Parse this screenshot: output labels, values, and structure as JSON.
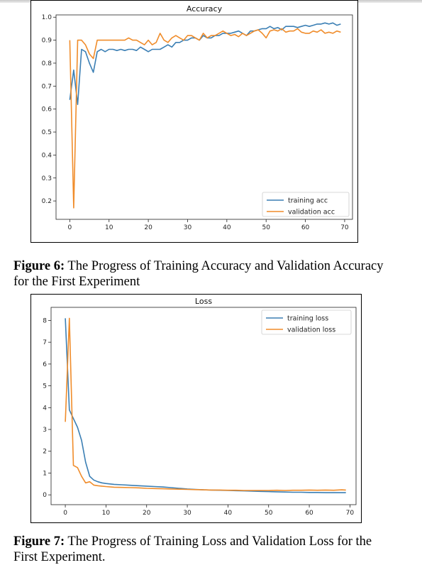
{
  "figures": [
    {
      "caption_label": "Figure 6:",
      "caption_text": " The Progress of Training Accuracy and Validation Accuracy for the First Experiment"
    },
    {
      "caption_label": "Figure 7:",
      "caption_text": " The Progress of Training Loss and Validation Loss for the First Experiment."
    }
  ],
  "colors": {
    "training": "#3b7fb4",
    "validation": "#f08c2a"
  },
  "chart_data": [
    {
      "type": "line",
      "title": "Accuracy",
      "xlabel": "",
      "ylabel": "",
      "xlim": [
        -3.5,
        72
      ],
      "ylim": [
        0.12,
        1.01
      ],
      "x_ticks": [
        "0",
        "10",
        "20",
        "30",
        "40",
        "50",
        "60",
        "70"
      ],
      "y_ticks": [
        "0.2",
        "0.3",
        "0.4",
        "0.5",
        "0.6",
        "0.7",
        "0.8",
        "0.9",
        "1.0"
      ],
      "legend_position": "lower-right",
      "grid": false,
      "series": [
        {
          "name": "training acc",
          "color_key": "training",
          "x": [
            0,
            1,
            2,
            3,
            4,
            5,
            6,
            7,
            8,
            9,
            10,
            11,
            12,
            13,
            14,
            15,
            16,
            17,
            18,
            19,
            20,
            21,
            22,
            23,
            24,
            25,
            26,
            27,
            28,
            29,
            30,
            31,
            32,
            33,
            34,
            35,
            36,
            37,
            38,
            39,
            40,
            41,
            42,
            43,
            44,
            45,
            46,
            47,
            48,
            49,
            50,
            51,
            52,
            53,
            54,
            55,
            56,
            57,
            58,
            59,
            60,
            61,
            62,
            63,
            64,
            65,
            66,
            67,
            68,
            69
          ],
          "values": [
            0.64,
            0.77,
            0.62,
            0.86,
            0.85,
            0.8,
            0.76,
            0.85,
            0.86,
            0.85,
            0.86,
            0.86,
            0.855,
            0.86,
            0.855,
            0.86,
            0.86,
            0.855,
            0.87,
            0.86,
            0.85,
            0.86,
            0.86,
            0.86,
            0.87,
            0.88,
            0.87,
            0.89,
            0.89,
            0.9,
            0.9,
            0.91,
            0.91,
            0.9,
            0.92,
            0.91,
            0.91,
            0.92,
            0.92,
            0.93,
            0.93,
            0.93,
            0.935,
            0.94,
            0.93,
            0.92,
            0.94,
            0.94,
            0.945,
            0.95,
            0.95,
            0.96,
            0.95,
            0.955,
            0.945,
            0.96,
            0.96,
            0.96,
            0.955,
            0.96,
            0.965,
            0.96,
            0.965,
            0.97,
            0.97,
            0.975,
            0.97,
            0.975,
            0.965,
            0.97
          ]
        },
        {
          "name": "validation acc",
          "color_key": "validation",
          "x": [
            0,
            1,
            2,
            3,
            4,
            5,
            6,
            7,
            8,
            9,
            10,
            11,
            12,
            13,
            14,
            15,
            16,
            17,
            18,
            19,
            20,
            21,
            22,
            23,
            24,
            25,
            26,
            27,
            28,
            29,
            30,
            31,
            32,
            33,
            34,
            35,
            36,
            37,
            38,
            39,
            40,
            41,
            42,
            43,
            44,
            45,
            46,
            47,
            48,
            49,
            50,
            51,
            52,
            53,
            54,
            55,
            56,
            57,
            58,
            59,
            60,
            61,
            62,
            63,
            64,
            65,
            66,
            67,
            68,
            69
          ],
          "values": [
            0.9,
            0.17,
            0.9,
            0.9,
            0.88,
            0.84,
            0.82,
            0.9,
            0.9,
            0.9,
            0.9,
            0.9,
            0.9,
            0.9,
            0.9,
            0.91,
            0.9,
            0.9,
            0.89,
            0.88,
            0.9,
            0.88,
            0.89,
            0.93,
            0.9,
            0.89,
            0.91,
            0.92,
            0.91,
            0.9,
            0.92,
            0.92,
            0.91,
            0.9,
            0.93,
            0.91,
            0.92,
            0.92,
            0.93,
            0.94,
            0.93,
            0.92,
            0.925,
            0.915,
            0.93,
            0.92,
            0.93,
            0.94,
            0.945,
            0.93,
            0.91,
            0.94,
            0.945,
            0.94,
            0.95,
            0.935,
            0.94,
            0.94,
            0.95,
            0.935,
            0.93,
            0.93,
            0.94,
            0.935,
            0.945,
            0.93,
            0.935,
            0.93,
            0.94,
            0.935
          ]
        }
      ]
    },
    {
      "type": "line",
      "title": "Loss",
      "xlabel": "",
      "ylabel": "",
      "xlim": [
        -3.5,
        71.5
      ],
      "ylim": [
        -0.45,
        8.6
      ],
      "x_ticks": [
        "0",
        "10",
        "20",
        "30",
        "40",
        "50",
        "60",
        "70"
      ],
      "y_ticks": [
        "0",
        "1",
        "2",
        "3",
        "4",
        "5",
        "6",
        "7",
        "8"
      ],
      "legend_position": "upper-right",
      "grid": false,
      "series": [
        {
          "name": "training loss",
          "color_key": "training",
          "x": [
            0,
            1,
            2,
            3,
            4,
            5,
            6,
            7,
            8,
            9,
            10,
            12,
            14,
            16,
            18,
            20,
            22,
            24,
            26,
            28,
            30,
            32,
            34,
            36,
            38,
            40,
            42,
            44,
            46,
            48,
            50,
            52,
            54,
            56,
            58,
            60,
            62,
            64,
            66,
            68,
            69
          ],
          "values": [
            8.1,
            3.9,
            3.5,
            3.1,
            2.5,
            1.5,
            0.85,
            0.68,
            0.6,
            0.55,
            0.52,
            0.48,
            0.46,
            0.44,
            0.42,
            0.4,
            0.38,
            0.36,
            0.33,
            0.3,
            0.27,
            0.25,
            0.23,
            0.22,
            0.21,
            0.2,
            0.19,
            0.18,
            0.17,
            0.16,
            0.15,
            0.14,
            0.13,
            0.12,
            0.12,
            0.11,
            0.11,
            0.1,
            0.1,
            0.1,
            0.1
          ]
        },
        {
          "name": "validation loss",
          "color_key": "validation",
          "x": [
            0,
            1,
            2,
            3,
            4,
            5,
            6,
            7,
            8,
            9,
            10,
            12,
            14,
            16,
            18,
            20,
            22,
            24,
            26,
            28,
            30,
            32,
            34,
            36,
            38,
            40,
            42,
            44,
            46,
            48,
            50,
            52,
            54,
            56,
            58,
            60,
            62,
            64,
            66,
            68,
            69
          ],
          "values": [
            3.35,
            8.1,
            1.35,
            1.25,
            0.85,
            0.55,
            0.6,
            0.45,
            0.42,
            0.4,
            0.38,
            0.35,
            0.34,
            0.33,
            0.32,
            0.3,
            0.29,
            0.28,
            0.27,
            0.26,
            0.25,
            0.24,
            0.23,
            0.22,
            0.22,
            0.21,
            0.21,
            0.2,
            0.2,
            0.2,
            0.2,
            0.21,
            0.2,
            0.21,
            0.21,
            0.22,
            0.21,
            0.22,
            0.21,
            0.23,
            0.22
          ]
        }
      ]
    }
  ]
}
